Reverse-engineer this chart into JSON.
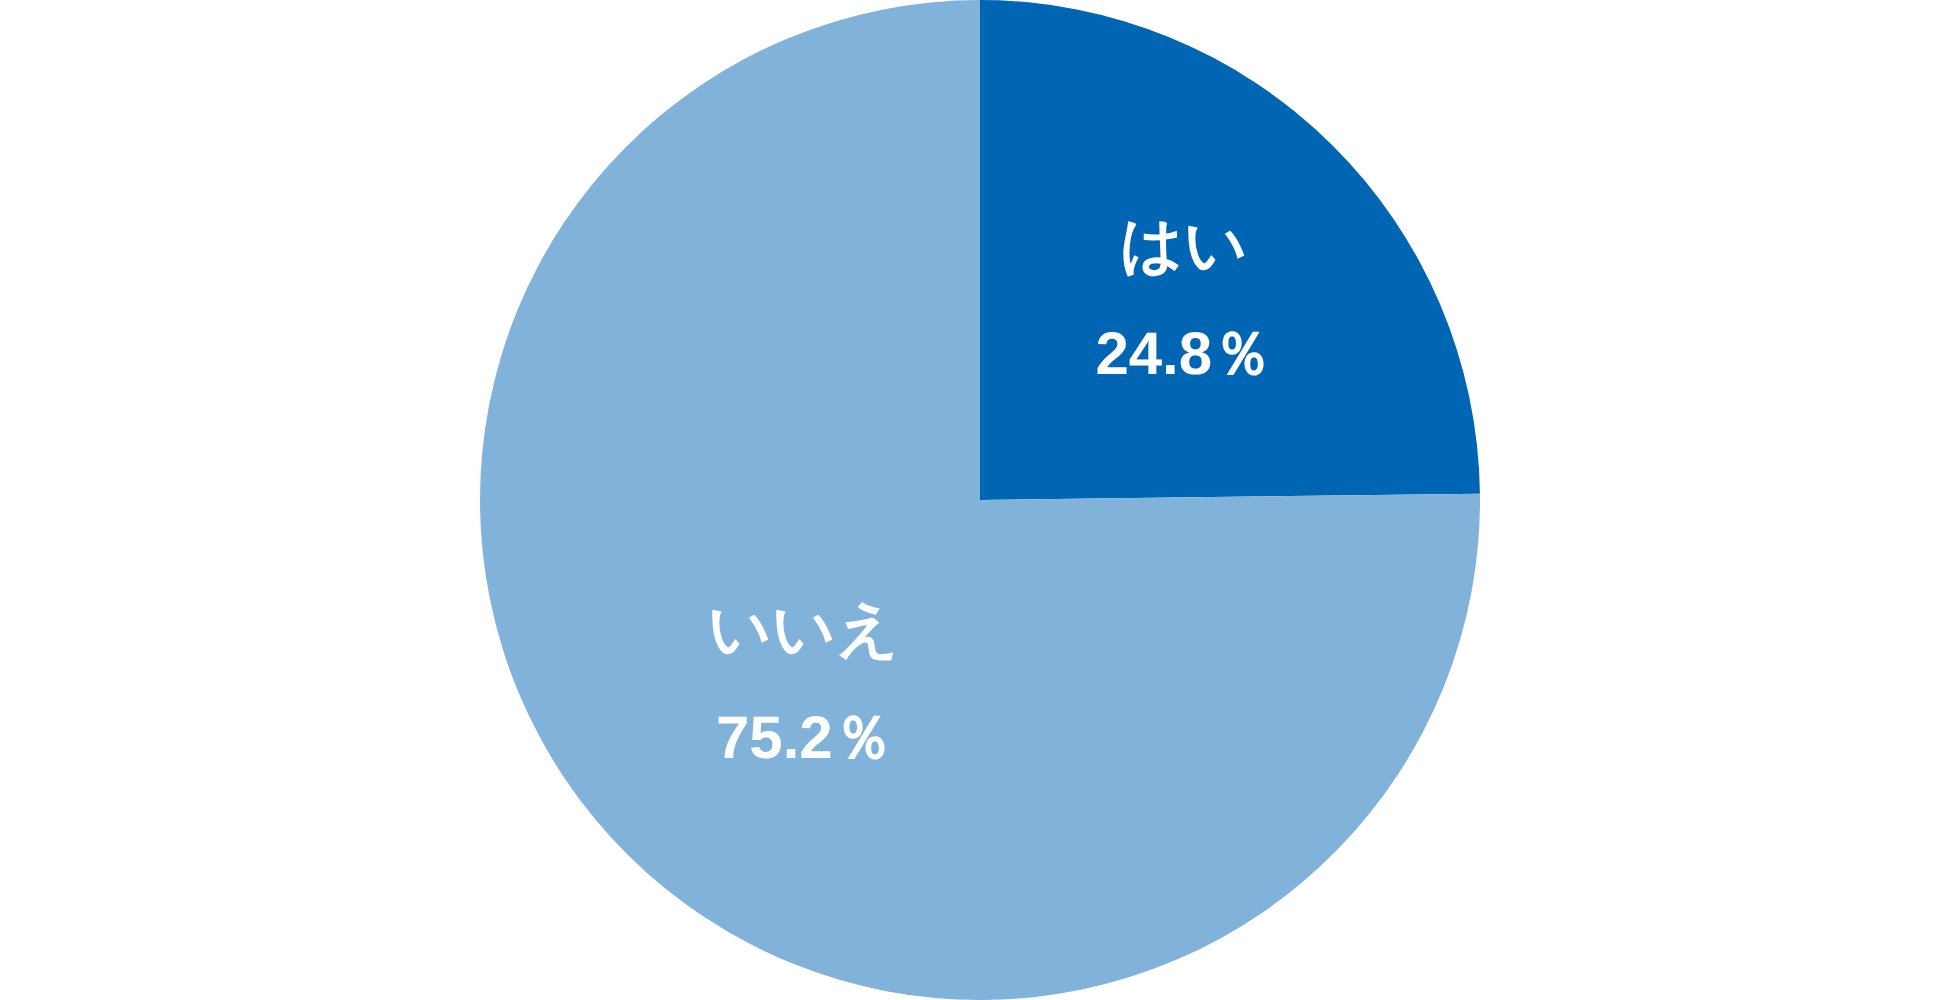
{
  "chart_data": {
    "type": "pie",
    "categories": [
      "はい",
      "いいえ"
    ],
    "values": [
      24.8,
      75.2
    ],
    "colors": [
      "#0066b3",
      "#80b2da"
    ],
    "value_labels": [
      "24.8％",
      "75.2％"
    ]
  }
}
